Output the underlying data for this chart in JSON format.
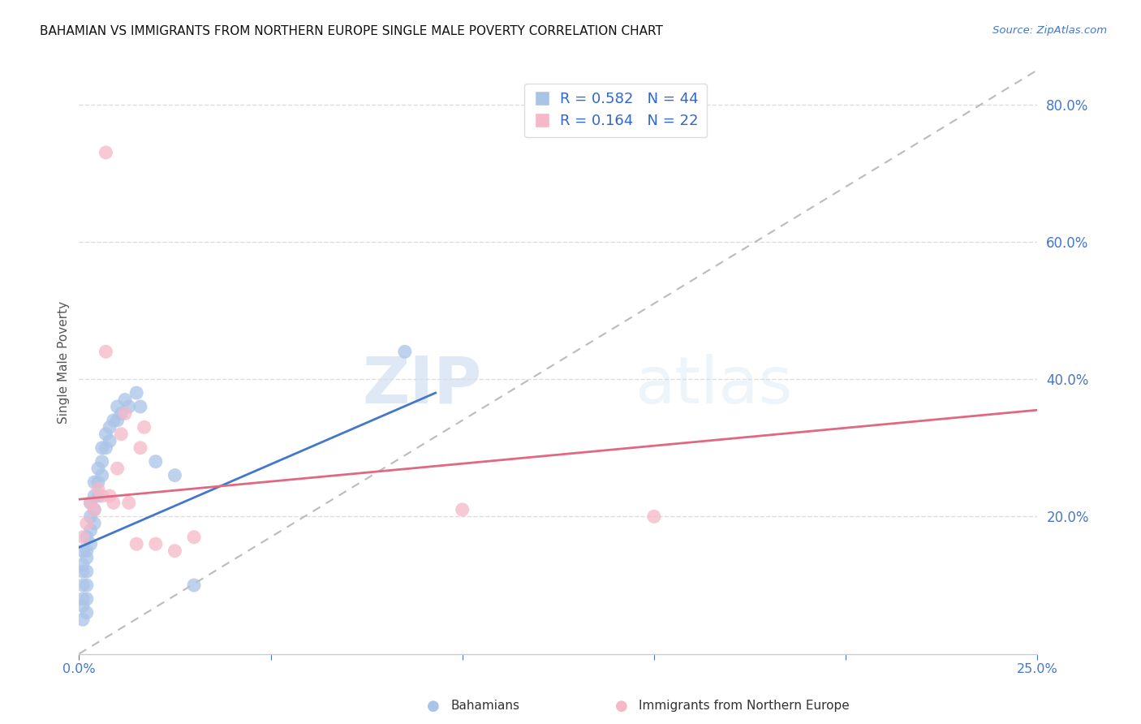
{
  "title": "BAHAMIAN VS IMMIGRANTS FROM NORTHERN EUROPE SINGLE MALE POVERTY CORRELATION CHART",
  "source": "Source: ZipAtlas.com",
  "ylabel": "Single Male Poverty",
  "legend_labels": [
    "Bahamians",
    "Immigrants from Northern Europe"
  ],
  "r_values": [
    0.582,
    0.164
  ],
  "n_values": [
    44,
    22
  ],
  "blue_color": "#aac4e8",
  "pink_color": "#f5b8c8",
  "blue_line_color": "#4477cc",
  "pink_line_color": "#e06880",
  "ref_line_color": "#bbbbbb",
  "xlim": [
    0.0,
    0.25
  ],
  "ylim": [
    0.0,
    0.85
  ],
  "xticks": [
    0.0,
    0.05,
    0.1,
    0.15,
    0.2,
    0.25
  ],
  "xtick_labels": [
    "0.0%",
    "",
    "",
    "",
    "",
    "25.0%"
  ],
  "yticks_right": [
    0.2,
    0.4,
    0.6,
    0.8
  ],
  "ytick_labels_right": [
    "20.0%",
    "40.0%",
    "60.0%",
    "80.0%"
  ],
  "blue_x": [
    0.001,
    0.001,
    0.001,
    0.001,
    0.001,
    0.001,
    0.001,
    0.002,
    0.002,
    0.002,
    0.002,
    0.002,
    0.002,
    0.002,
    0.003,
    0.003,
    0.003,
    0.003,
    0.004,
    0.004,
    0.004,
    0.004,
    0.005,
    0.005,
    0.005,
    0.006,
    0.006,
    0.006,
    0.007,
    0.007,
    0.008,
    0.008,
    0.009,
    0.01,
    0.01,
    0.011,
    0.012,
    0.013,
    0.015,
    0.016,
    0.02,
    0.025,
    0.03,
    0.085
  ],
  "blue_y": [
    0.15,
    0.13,
    0.12,
    0.1,
    0.08,
    0.07,
    0.05,
    0.17,
    0.15,
    0.14,
    0.12,
    0.1,
    0.08,
    0.06,
    0.22,
    0.2,
    0.18,
    0.16,
    0.25,
    0.23,
    0.21,
    0.19,
    0.27,
    0.25,
    0.23,
    0.3,
    0.28,
    0.26,
    0.32,
    0.3,
    0.33,
    0.31,
    0.34,
    0.36,
    0.34,
    0.35,
    0.37,
    0.36,
    0.38,
    0.36,
    0.28,
    0.26,
    0.1,
    0.44
  ],
  "pink_x": [
    0.001,
    0.002,
    0.003,
    0.004,
    0.005,
    0.006,
    0.007,
    0.008,
    0.009,
    0.01,
    0.011,
    0.012,
    0.013,
    0.015,
    0.016,
    0.017,
    0.02,
    0.025,
    0.03,
    0.1,
    0.15,
    0.007
  ],
  "pink_y": [
    0.17,
    0.19,
    0.22,
    0.21,
    0.24,
    0.23,
    0.73,
    0.23,
    0.22,
    0.27,
    0.32,
    0.35,
    0.22,
    0.16,
    0.3,
    0.33,
    0.16,
    0.15,
    0.17,
    0.21,
    0.2,
    0.44
  ],
  "watermark_zip": "ZIP",
  "watermark_atlas": "atlas",
  "background_color": "#ffffff",
  "grid_color": "#dddddd",
  "blue_trend_x0": 0.0,
  "blue_trend_y0": 0.155,
  "blue_trend_x1": 0.093,
  "blue_trend_y1": 0.38,
  "pink_trend_x0": 0.0,
  "pink_trend_y0": 0.225,
  "pink_trend_x1": 0.25,
  "pink_trend_y1": 0.355
}
